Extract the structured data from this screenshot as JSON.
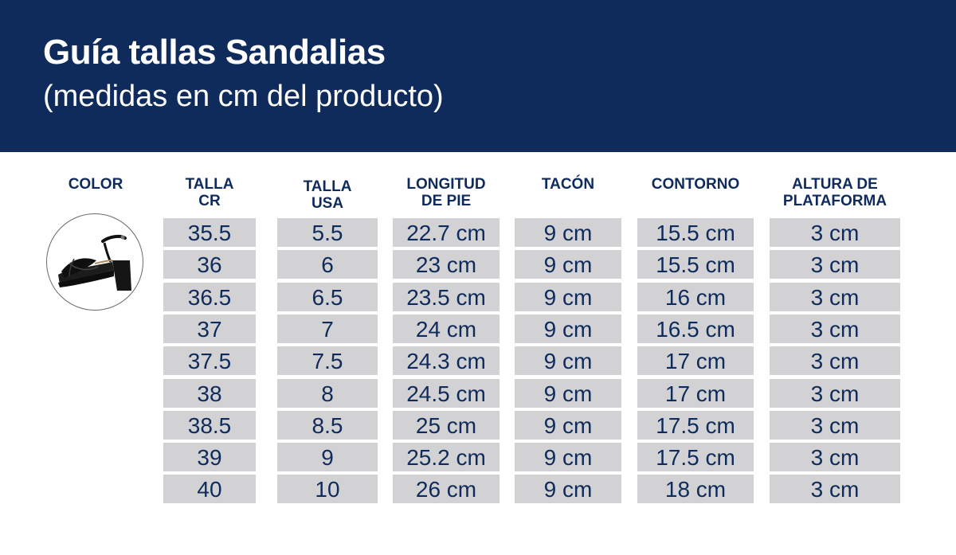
{
  "header": {
    "title": "Guía tallas Sandalias",
    "subtitle": "(medidas en cm del producto)"
  },
  "columns": [
    "COLOR",
    "TALLA\nCR",
    "TALLA\nUSA",
    "LONGITUD\nDE PIE",
    "TACÓN",
    "CONTORNO",
    "ALTURA DE\nPLATAFORMA"
  ],
  "product_image": "black-platform-sandal",
  "rows": [
    [
      "35.5",
      "5.5",
      "22.7 cm",
      "9 cm",
      "15.5 cm",
      "3 cm"
    ],
    [
      "36",
      "6",
      "23 cm",
      "9 cm",
      "15.5 cm",
      "3 cm"
    ],
    [
      "36.5",
      "6.5",
      "23.5 cm",
      "9 cm",
      "16 cm",
      "3 cm"
    ],
    [
      "37",
      "7",
      "24 cm",
      "9 cm",
      "16.5 cm",
      "3 cm"
    ],
    [
      "37.5",
      "7.5",
      "24.3 cm",
      "9 cm",
      "17 cm",
      "3 cm"
    ],
    [
      "38",
      "8",
      "24.5 cm",
      "9 cm",
      "17 cm",
      "3 cm"
    ],
    [
      "38.5",
      "8.5",
      "25 cm",
      "9 cm",
      "17.5 cm",
      "3 cm"
    ],
    [
      "39",
      "9",
      "25.2 cm",
      "9 cm",
      "17.5 cm",
      "3 cm"
    ],
    [
      "40",
      "10",
      "26 cm",
      "9 cm",
      "18 cm",
      "3 cm"
    ]
  ],
  "colors": {
    "navy": "#0f2b5b",
    "cell_bg": "#d2d2d4"
  }
}
